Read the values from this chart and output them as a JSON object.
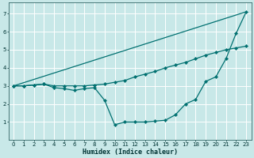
{
  "xlabel": "Humidex (Indice chaleur)",
  "bg_color": "#c8e8e8",
  "grid_color": "#ffffff",
  "line_color": "#007070",
  "xlim": [
    -0.5,
    23.5
  ],
  "ylim": [
    0,
    7.6
  ],
  "yticks": [
    1,
    2,
    3,
    4,
    5,
    6,
    7
  ],
  "xticks": [
    0,
    1,
    2,
    3,
    4,
    5,
    6,
    7,
    8,
    9,
    10,
    11,
    12,
    13,
    14,
    15,
    16,
    17,
    18,
    19,
    20,
    21,
    22,
    23
  ],
  "line1_x": [
    0,
    23
  ],
  "line1_y": [
    3.0,
    7.1
  ],
  "line2_x": [
    0,
    1,
    2,
    3,
    4,
    5,
    6,
    7,
    8,
    9,
    10,
    11,
    12,
    13,
    14,
    15,
    16,
    17,
    18,
    19,
    20,
    21,
    22,
    23
  ],
  "line2_y": [
    3.0,
    3.0,
    3.05,
    3.1,
    2.9,
    2.85,
    2.75,
    2.85,
    2.9,
    2.2,
    0.85,
    1.0,
    1.0,
    1.0,
    1.05,
    1.1,
    1.4,
    2.0,
    2.25,
    3.25,
    3.5,
    4.5,
    5.9,
    7.1
  ],
  "line3_x": [
    0,
    1,
    2,
    3,
    4,
    5,
    6,
    7,
    8,
    9,
    10,
    11,
    12,
    13,
    14,
    15,
    16,
    17,
    18,
    19,
    20,
    21,
    22,
    23
  ],
  "line3_y": [
    3.0,
    3.0,
    3.05,
    3.1,
    3.0,
    3.0,
    3.0,
    3.0,
    3.05,
    3.1,
    3.2,
    3.3,
    3.5,
    3.65,
    3.8,
    4.0,
    4.15,
    4.3,
    4.5,
    4.7,
    4.85,
    5.0,
    5.1,
    5.2
  ]
}
